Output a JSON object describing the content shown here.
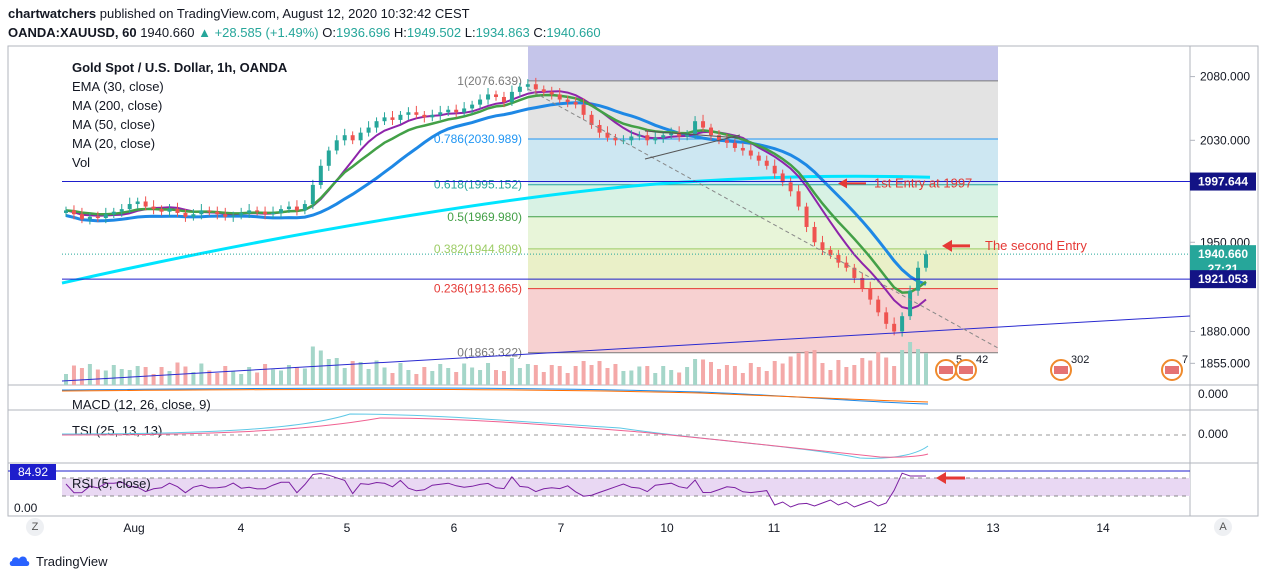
{
  "header": {
    "publisher": "chartwatchers",
    "published_text": " published on TradingView.com, August 12, 2020 10:32:42 CEST",
    "symbol": "OANDA:XAUUSD, 60",
    "last": "1940.660",
    "change": "+28.585 (+1.49%)",
    "o_label": "O:",
    "o": "1936.696",
    "h_label": "H:",
    "h": "1949.502",
    "l_label": "L:",
    "l": "1934.863",
    "c_label": "C:",
    "c": "1940.660"
  },
  "legend": {
    "title": "Gold Spot / U.S. Dollar, 1h, OANDA",
    "ema30": "EMA (30, close)",
    "ma200": "MA (200, close)",
    "ma50": "MA (50, close)",
    "ma20": "MA (20, close)",
    "vol": "Vol"
  },
  "colors": {
    "up": "#26a69a",
    "down": "#ef5350",
    "ema30": "#43a047",
    "ma200": "#00e5ff",
    "ma50": "#1e88e5",
    "ma20": "#8e24aa",
    "blue_line": "#1e1ecc",
    "red_annot": "#e53935"
  },
  "chart_data": {
    "type": "candlestick",
    "symbol": "XAUUSD",
    "timeframe": "1h",
    "ylim": [
      1838,
      2104
    ],
    "price_ticks": [
      "2080.000",
      "2030.000",
      "1950.000",
      "1880.000",
      "1855.000"
    ],
    "price_tick_values": [
      2080,
      2030,
      1950,
      1880,
      1855
    ],
    "price_labels": [
      {
        "text": "1997.644",
        "value": 1997.644,
        "style": "navy"
      },
      {
        "text": "1940.660",
        "value": 1940.66,
        "style": "green"
      },
      {
        "text": "27:21",
        "value": 1929,
        "style": "green"
      },
      {
        "text": "1921.053",
        "value": 1921.053,
        "style": "navy"
      }
    ],
    "x_labels": [
      "Aug",
      "4",
      "5",
      "6",
      "7",
      "10",
      "11",
      "12",
      "13",
      "14"
    ],
    "fibonacci": [
      {
        "ratio": "1",
        "price": 2076.639,
        "label": "1(2076.639)"
      },
      {
        "ratio": "0.786",
        "price": 2030.989,
        "label": "0.786(2030.989)"
      },
      {
        "ratio": "0.618",
        "price": 1995.152,
        "label": "0.618(1995.152)"
      },
      {
        "ratio": "0.5",
        "price": 1969.98,
        "label": "0.5(1969.980)"
      },
      {
        "ratio": "0.382",
        "price": 1944.809,
        "label": "0.382(1944.809)"
      },
      {
        "ratio": "0.236",
        "price": 1913.665,
        "label": "0.236(1913.665)"
      },
      {
        "ratio": "0",
        "price": 1863.322,
        "label": "0(1863.322)"
      }
    ],
    "annotations": [
      {
        "text": "1st Entry at 1997",
        "price": 1997
      },
      {
        "text": "The second Entry",
        "price": 1944
      }
    ],
    "horizontal_lines": [
      1997.644,
      1921.053
    ],
    "event_badges": [
      "5",
      "42",
      "302",
      "7"
    ],
    "indicators": [
      {
        "name": "MACD (12, 26, close, 9)",
        "axis_value": "0.000"
      },
      {
        "name": "TSI (25, 13, 13)",
        "axis_value": "0.000"
      },
      {
        "name": "RSI (5, close)",
        "value_label": "84.92",
        "axis_value": "0.00"
      }
    ],
    "closes": [
      1975,
      1972,
      1968,
      1970,
      1969,
      1972,
      1974,
      1976,
      1980,
      1982,
      1978,
      1976,
      1974,
      1976,
      1973,
      1970,
      1972,
      1975,
      1974,
      1972,
      1970,
      1971,
      1973,
      1975,
      1974,
      1972,
      1973,
      1976,
      1978,
      1975,
      1980,
      1995,
      2010,
      2022,
      2030,
      2034,
      2030,
      2036,
      2040,
      2045,
      2048,
      2046,
      2050,
      2052,
      2050,
      2048,
      2050,
      2052,
      2054,
      2052,
      2055,
      2058,
      2062,
      2066,
      2064,
      2060,
      2068,
      2072,
      2074,
      2070,
      2068,
      2066,
      2062,
      2060,
      2058,
      2050,
      2042,
      2036,
      2032,
      2030,
      2030,
      2033,
      2034,
      2030,
      2032,
      2034,
      2036,
      2033,
      2035,
      2045,
      2040,
      2034,
      2030,
      2028,
      2024,
      2022,
      2018,
      2014,
      2010,
      2004,
      1997,
      1990,
      1978,
      1962,
      1950,
      1944,
      1940,
      1934,
      1930,
      1922,
      1914,
      1905,
      1895,
      1886,
      1880,
      1892,
      1912,
      1930,
      1940.66
    ]
  },
  "footer": {
    "brand": "TradingView",
    "btn_z": "Z",
    "btn_a": "A"
  }
}
